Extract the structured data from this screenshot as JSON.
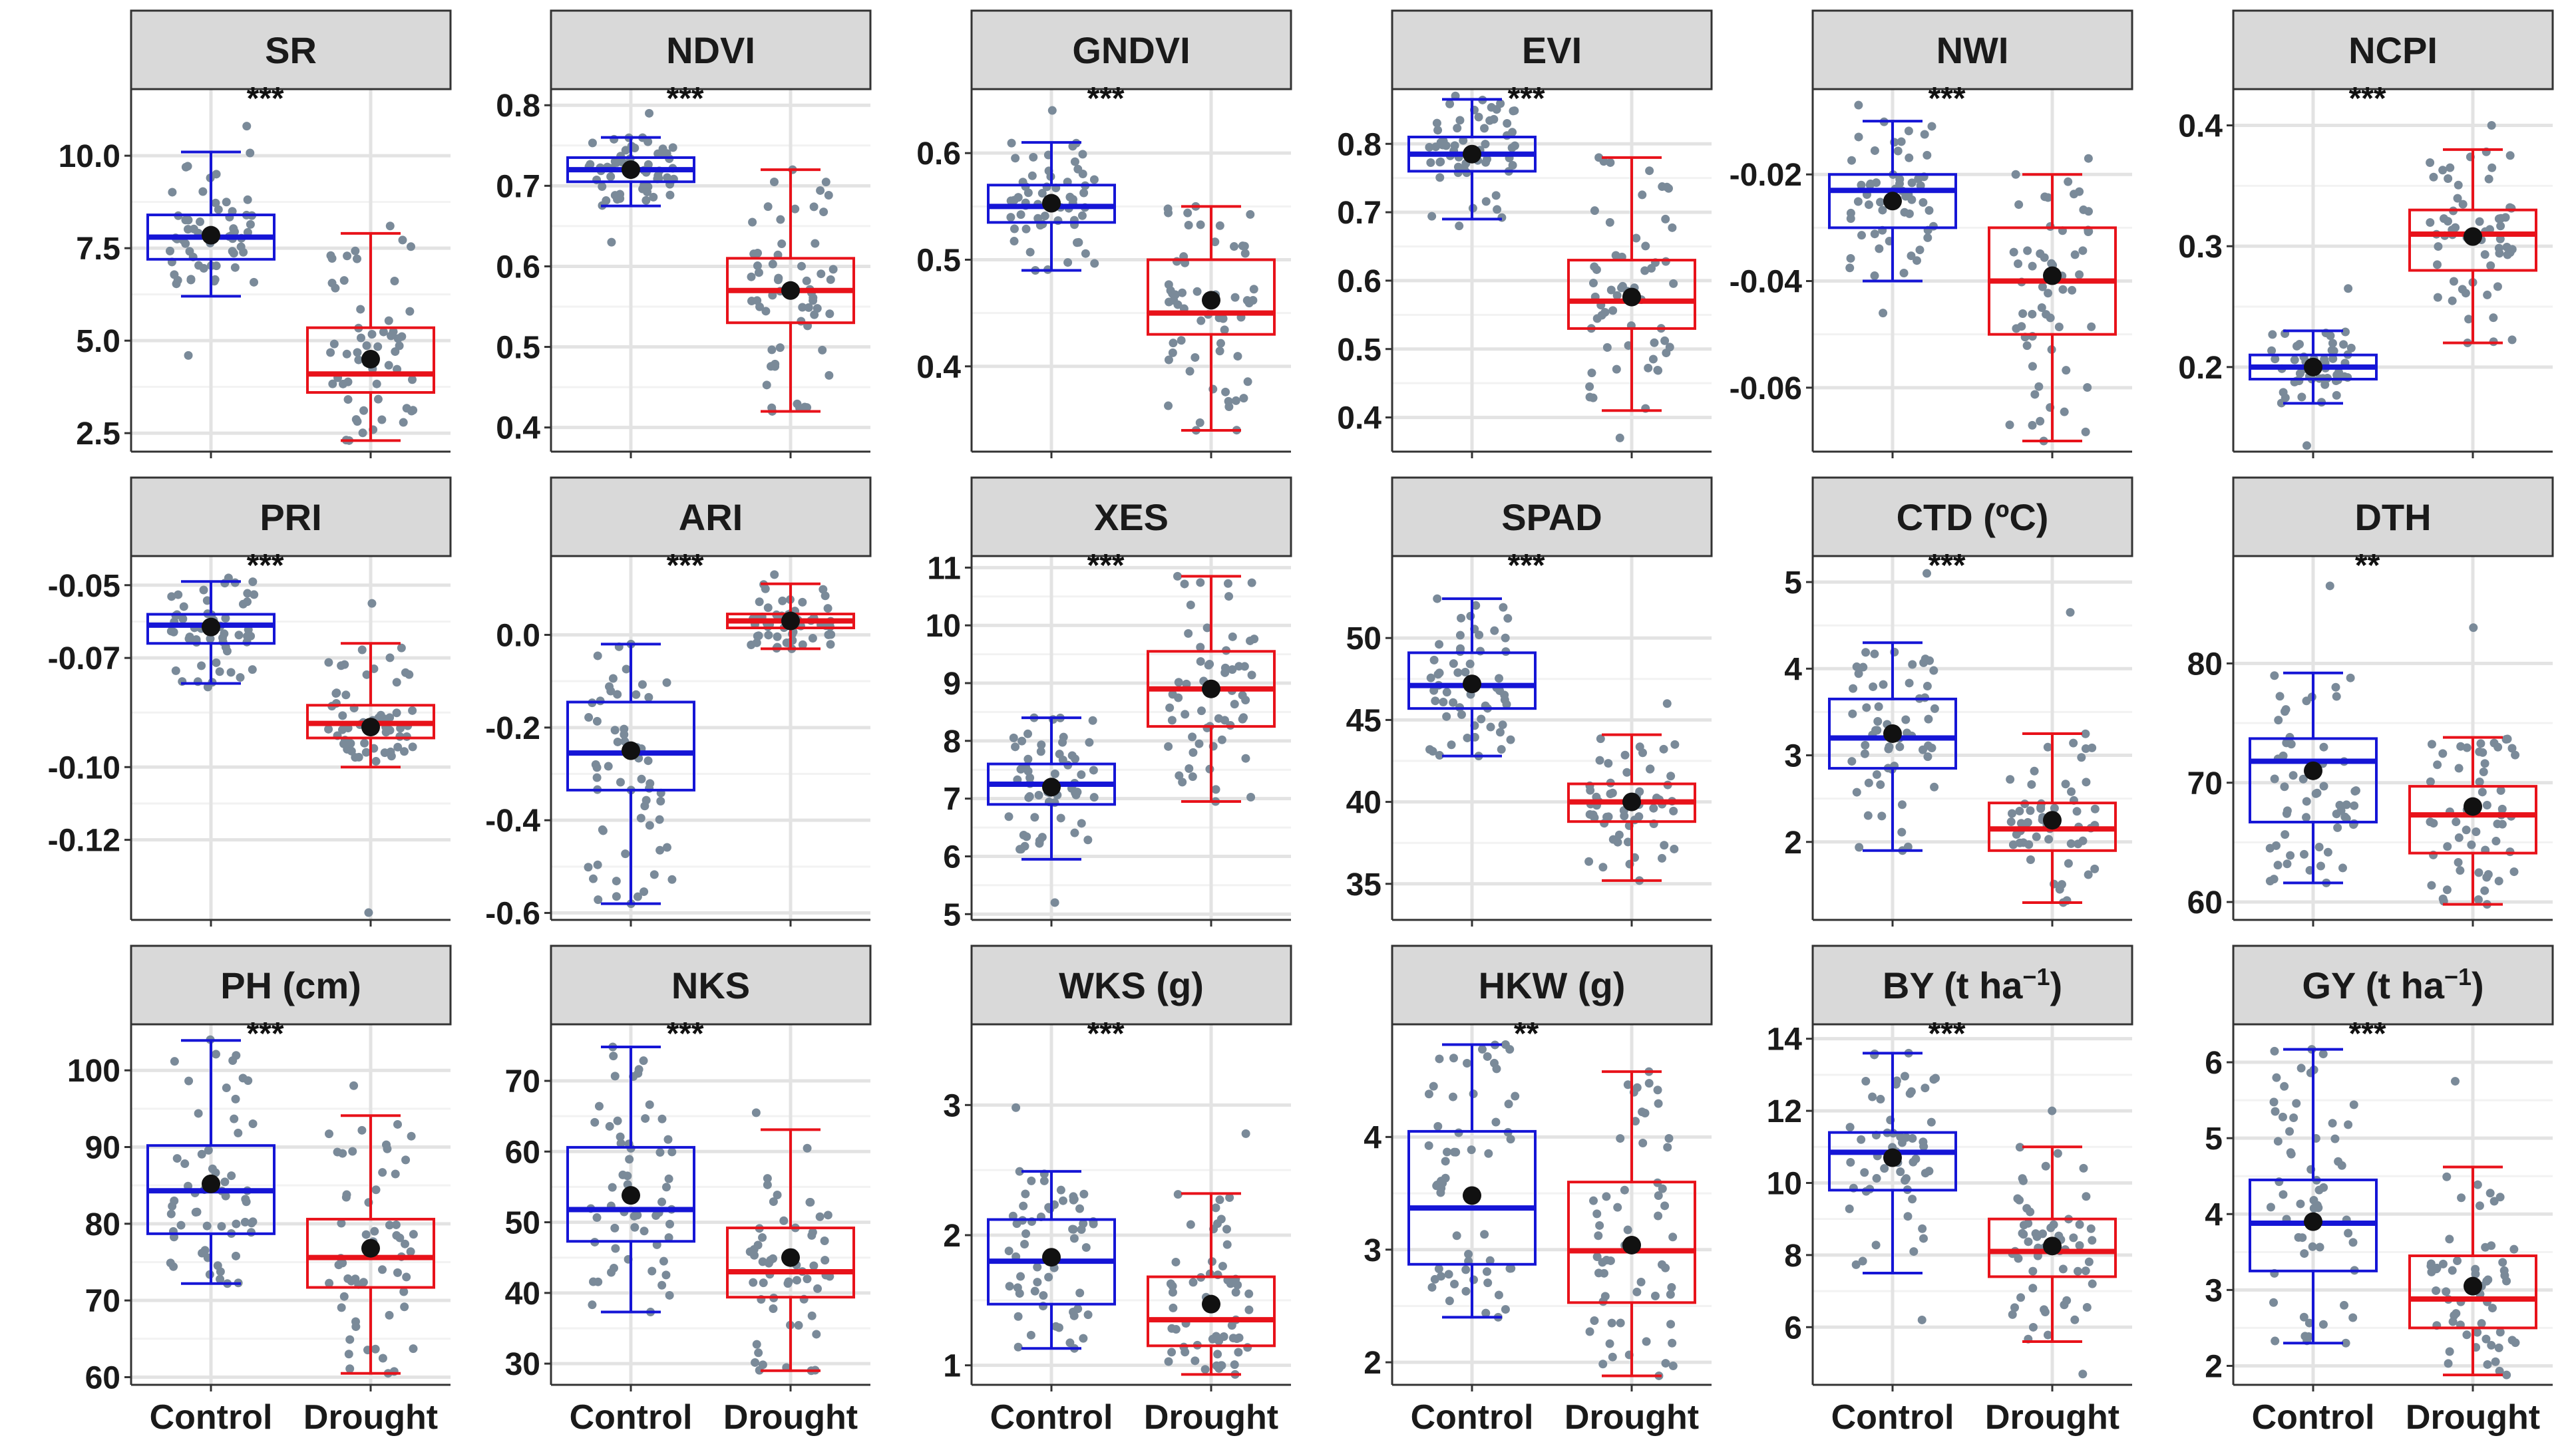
{
  "colors": {
    "control": "#1515d6",
    "drought": "#e8121a",
    "point": "#7a8a99",
    "mean": "#111111",
    "strip_fill": "#d9d9d9",
    "grid_major": "#e3e3e3",
    "grid_minor": "#f2f2f2"
  },
  "chart_data": [
    {
      "type": "box",
      "title": "SR",
      "title_sup": "",
      "significance": "***",
      "categories": [
        "Control",
        "Drought"
      ],
      "ylim": [
        2.0,
        11.8
      ],
      "ticks": [
        2.5,
        5.0,
        7.5,
        10.0
      ],
      "tick_labels": [
        "2.5",
        "5.0",
        "7.5",
        "10.0"
      ],
      "series": [
        {
          "name": "Control",
          "min": 6.2,
          "q1": 7.2,
          "median": 7.8,
          "q3": 8.4,
          "max": 10.1,
          "mean": 7.85,
          "range": [
            4.6,
            10.8
          ]
        },
        {
          "name": "Drought",
          "min": 2.3,
          "q1": 3.6,
          "median": 4.1,
          "q3": 5.35,
          "max": 7.9,
          "mean": 4.5,
          "range": [
            2.3,
            8.1
          ]
        }
      ]
    },
    {
      "type": "box",
      "title": "NDVI",
      "title_sup": "",
      "significance": "***",
      "categories": [
        "Control",
        "Drought"
      ],
      "ylim": [
        0.37,
        0.82
      ],
      "ticks": [
        0.4,
        0.5,
        0.6,
        0.7,
        0.8
      ],
      "tick_labels": [
        "0.4",
        "0.5",
        "0.6",
        "0.7",
        "0.8"
      ],
      "series": [
        {
          "name": "Control",
          "min": 0.675,
          "q1": 0.705,
          "median": 0.72,
          "q3": 0.735,
          "max": 0.76,
          "mean": 0.72,
          "range": [
            0.63,
            0.79
          ]
        },
        {
          "name": "Drought",
          "min": 0.42,
          "q1": 0.53,
          "median": 0.57,
          "q3": 0.61,
          "max": 0.72,
          "mean": 0.57,
          "range": [
            0.42,
            0.72
          ]
        }
      ]
    },
    {
      "type": "box",
      "title": "GNDVI",
      "title_sup": "",
      "significance": "***",
      "categories": [
        "Control",
        "Drought"
      ],
      "ylim": [
        0.32,
        0.66
      ],
      "ticks": [
        0.4,
        0.5,
        0.6
      ],
      "tick_labels": [
        "0.4",
        "0.5",
        "0.6"
      ],
      "series": [
        {
          "name": "Control",
          "min": 0.49,
          "q1": 0.535,
          "median": 0.55,
          "q3": 0.57,
          "max": 0.61,
          "mean": 0.553,
          "range": [
            0.49,
            0.64
          ]
        },
        {
          "name": "Drought",
          "min": 0.34,
          "q1": 0.43,
          "median": 0.45,
          "q3": 0.5,
          "max": 0.55,
          "mean": 0.462,
          "range": [
            0.34,
            0.55
          ]
        }
      ]
    },
    {
      "type": "box",
      "title": "EVI",
      "title_sup": "",
      "significance": "***",
      "categories": [
        "Control",
        "Drought"
      ],
      "ylim": [
        0.35,
        0.88
      ],
      "ticks": [
        0.4,
        0.5,
        0.6,
        0.7,
        0.8
      ],
      "tick_labels": [
        "0.4",
        "0.5",
        "0.6",
        "0.7",
        "0.8"
      ],
      "series": [
        {
          "name": "Control",
          "min": 0.69,
          "q1": 0.76,
          "median": 0.785,
          "q3": 0.81,
          "max": 0.865,
          "mean": 0.785,
          "range": [
            0.68,
            0.87
          ]
        },
        {
          "name": "Drought",
          "min": 0.41,
          "q1": 0.53,
          "median": 0.57,
          "q3": 0.63,
          "max": 0.78,
          "mean": 0.576,
          "range": [
            0.37,
            0.78
          ]
        }
      ]
    },
    {
      "type": "box",
      "title": "NWI",
      "title_sup": "",
      "significance": "***",
      "categories": [
        "Control",
        "Drought"
      ],
      "ylim": [
        -0.072,
        -0.004
      ],
      "ticks": [
        -0.06,
        -0.04,
        -0.02
      ],
      "tick_labels": [
        "-0.06",
        "-0.04",
        "-0.02"
      ],
      "series": [
        {
          "name": "Control",
          "min": -0.04,
          "q1": -0.03,
          "median": -0.023,
          "q3": -0.02,
          "max": -0.01,
          "mean": -0.025,
          "range": [
            -0.046,
            -0.007
          ]
        },
        {
          "name": "Drought",
          "min": -0.07,
          "q1": -0.05,
          "median": -0.04,
          "q3": -0.03,
          "max": -0.02,
          "mean": -0.039,
          "range": [
            -0.07,
            -0.017
          ]
        }
      ]
    },
    {
      "type": "box",
      "title": "NCPI",
      "title_sup": "",
      "significance": "***",
      "categories": [
        "Control",
        "Drought"
      ],
      "ylim": [
        0.13,
        0.43
      ],
      "ticks": [
        0.2,
        0.3,
        0.4
      ],
      "tick_labels": [
        "0.2",
        "0.3",
        "0.4"
      ],
      "series": [
        {
          "name": "Control",
          "min": 0.17,
          "q1": 0.19,
          "median": 0.2,
          "q3": 0.21,
          "max": 0.23,
          "mean": 0.2,
          "range": [
            0.135,
            0.265
          ]
        },
        {
          "name": "Drought",
          "min": 0.22,
          "q1": 0.28,
          "median": 0.31,
          "q3": 0.33,
          "max": 0.38,
          "mean": 0.308,
          "range": [
            0.22,
            0.4
          ]
        }
      ]
    },
    {
      "type": "box",
      "title": "PRI",
      "title_sup": "",
      "significance": "***",
      "categories": [
        "Control",
        "Drought"
      ],
      "ylim": [
        -0.142,
        -0.042
      ],
      "ticks": [
        -0.12,
        -0.1,
        -0.07,
        -0.05
      ],
      "tick_labels": [
        "-0.12",
        "-0.10",
        "-0.07",
        "-0.05"
      ],
      "series": [
        {
          "name": "Control",
          "min": -0.077,
          "q1": -0.066,
          "median": -0.061,
          "q3": -0.058,
          "max": -0.049,
          "mean": -0.0615,
          "range": [
            -0.078,
            -0.048
          ]
        },
        {
          "name": "Drought",
          "min": -0.1,
          "q1": -0.092,
          "median": -0.088,
          "q3": -0.083,
          "max": -0.066,
          "mean": -0.089,
          "range": [
            -0.14,
            -0.055
          ]
        }
      ]
    },
    {
      "type": "box",
      "title": "ARI",
      "title_sup": "",
      "significance": "***",
      "categories": [
        "Control",
        "Drought"
      ],
      "ylim": [
        -0.615,
        0.17
      ],
      "ticks": [
        -0.6,
        -0.4,
        -0.2,
        0.0
      ],
      "tick_labels": [
        "-0.6",
        "-0.4",
        "-0.2",
        "0.0"
      ],
      "series": [
        {
          "name": "Control",
          "min": -0.58,
          "q1": -0.335,
          "median": -0.255,
          "q3": -0.145,
          "max": -0.02,
          "mean": -0.25,
          "range": [
            -0.58,
            -0.02
          ]
        },
        {
          "name": "Drought",
          "min": -0.03,
          "q1": 0.015,
          "median": 0.03,
          "q3": 0.045,
          "max": 0.11,
          "mean": 0.03,
          "range": [
            -0.03,
            0.13
          ]
        }
      ]
    },
    {
      "type": "box",
      "title": "XES",
      "title_sup": "",
      "significance": "***",
      "categories": [
        "Control",
        "Drought"
      ],
      "ylim": [
        4.9,
        11.2
      ],
      "ticks": [
        5,
        6,
        7,
        8,
        9,
        10,
        11
      ],
      "tick_labels": [
        "5",
        "6",
        "7",
        "8",
        "9",
        "10",
        "11"
      ],
      "series": [
        {
          "name": "Control",
          "min": 5.95,
          "q1": 6.9,
          "median": 7.25,
          "q3": 7.6,
          "max": 8.4,
          "mean": 7.2,
          "range": [
            5.2,
            8.4
          ]
        },
        {
          "name": "Drought",
          "min": 6.95,
          "q1": 8.25,
          "median": 8.9,
          "q3": 9.55,
          "max": 10.85,
          "mean": 8.9,
          "range": [
            6.95,
            10.85
          ]
        }
      ]
    },
    {
      "type": "box",
      "title": "SPAD",
      "title_sup": "",
      "significance": "***",
      "categories": [
        "Control",
        "Drought"
      ],
      "ylim": [
        32.8,
        55.0
      ],
      "ticks": [
        35,
        40,
        45,
        50
      ],
      "tick_labels": [
        "35",
        "40",
        "45",
        "50"
      ],
      "series": [
        {
          "name": "Control",
          "min": 42.8,
          "q1": 45.7,
          "median": 47.1,
          "q3": 49.1,
          "max": 52.4,
          "mean": 47.2,
          "range": [
            42.8,
            52.4
          ]
        },
        {
          "name": "Drought",
          "min": 35.2,
          "q1": 38.8,
          "median": 40.0,
          "q3": 41.1,
          "max": 44.1,
          "mean": 40.0,
          "range": [
            35.2,
            46.0
          ]
        }
      ]
    },
    {
      "type": "box",
      "title": "CTD (ºC)",
      "title_sup": "",
      "significance": "***",
      "categories": [
        "Control",
        "Drought"
      ],
      "ylim": [
        1.1,
        5.3
      ],
      "ticks": [
        2,
        3,
        4,
        5
      ],
      "tick_labels": [
        "2",
        "3",
        "4",
        "5"
      ],
      "series": [
        {
          "name": "Control",
          "min": 1.9,
          "q1": 2.85,
          "median": 3.2,
          "q3": 3.65,
          "max": 4.3,
          "mean": 3.25,
          "range": [
            1.9,
            5.1
          ]
        },
        {
          "name": "Drought",
          "min": 1.3,
          "q1": 1.9,
          "median": 2.15,
          "q3": 2.45,
          "max": 3.25,
          "mean": 2.25,
          "range": [
            1.3,
            4.65
          ]
        }
      ]
    },
    {
      "type": "box",
      "title": "DTH",
      "title_sup": "",
      "significance": "**",
      "categories": [
        "Control",
        "Drought"
      ],
      "ylim": [
        58.5,
        89.0
      ],
      "ticks": [
        60,
        70,
        80
      ],
      "tick_labels": [
        "60",
        "70",
        "80"
      ],
      "series": [
        {
          "name": "Control",
          "min": 61.6,
          "q1": 66.7,
          "median": 71.8,
          "q3": 73.7,
          "max": 79.2,
          "mean": 71.0,
          "range": [
            61.6,
            86.5
          ]
        },
        {
          "name": "Drought",
          "min": 59.8,
          "q1": 64.1,
          "median": 67.3,
          "q3": 69.7,
          "max": 73.8,
          "mean": 68.0,
          "range": [
            59.8,
            83.0
          ]
        }
      ]
    },
    {
      "type": "box",
      "title": "PH (cm)",
      "title_sup": "",
      "significance": "***",
      "categories": [
        "Control",
        "Drought"
      ],
      "ylim": [
        59.0,
        106.0
      ],
      "ticks": [
        60,
        70,
        80,
        90,
        100
      ],
      "tick_labels": [
        "60",
        "70",
        "80",
        "90",
        "100"
      ],
      "series": [
        {
          "name": "Control",
          "min": 72.2,
          "q1": 78.7,
          "median": 84.3,
          "q3": 90.2,
          "max": 103.9,
          "mean": 85.2,
          "range": [
            72.2,
            104.0
          ]
        },
        {
          "name": "Drought",
          "min": 60.5,
          "q1": 71.7,
          "median": 75.6,
          "q3": 80.6,
          "max": 94.1,
          "mean": 76.8,
          "range": [
            60.5,
            98.0
          ]
        }
      ]
    },
    {
      "type": "box",
      "title": "NKS",
      "title_sup": "",
      "significance": "***",
      "categories": [
        "Control",
        "Drought"
      ],
      "ylim": [
        27.0,
        78.0
      ],
      "ticks": [
        30,
        40,
        50,
        60,
        70
      ],
      "tick_labels": [
        "30",
        "40",
        "50",
        "60",
        "70"
      ],
      "series": [
        {
          "name": "Control",
          "min": 37.3,
          "q1": 47.3,
          "median": 51.8,
          "q3": 60.6,
          "max": 74.8,
          "mean": 53.8,
          "range": [
            37.3,
            74.8
          ]
        },
        {
          "name": "Drought",
          "min": 29.0,
          "q1": 39.4,
          "median": 43.0,
          "q3": 49.2,
          "max": 63.1,
          "mean": 45.0,
          "range": [
            29.0,
            65.5
          ]
        }
      ]
    },
    {
      "type": "box",
      "title": "WKS (g)",
      "title_sup": "",
      "significance": "***",
      "categories": [
        "Control",
        "Drought"
      ],
      "ylim": [
        0.85,
        3.62
      ],
      "ticks": [
        1,
        2,
        3
      ],
      "tick_labels": [
        "1",
        "2",
        "3"
      ],
      "series": [
        {
          "name": "Control",
          "min": 1.13,
          "q1": 1.47,
          "median": 1.8,
          "q3": 2.12,
          "max": 2.49,
          "mean": 1.83,
          "range": [
            1.13,
            2.98
          ]
        },
        {
          "name": "Drought",
          "min": 0.93,
          "q1": 1.15,
          "median": 1.35,
          "q3": 1.68,
          "max": 2.32,
          "mean": 1.47,
          "range": [
            0.93,
            2.78
          ]
        }
      ]
    },
    {
      "type": "box",
      "title": "HKW (g)",
      "title_sup": "",
      "significance": "**",
      "categories": [
        "Control",
        "Drought"
      ],
      "ylim": [
        1.8,
        5.0
      ],
      "ticks": [
        2,
        3,
        4
      ],
      "tick_labels": [
        "2",
        "3",
        "4"
      ],
      "series": [
        {
          "name": "Control",
          "min": 2.4,
          "q1": 2.87,
          "median": 3.37,
          "q3": 4.05,
          "max": 4.82,
          "mean": 3.48,
          "range": [
            2.4,
            4.82
          ]
        },
        {
          "name": "Drought",
          "min": 1.88,
          "q1": 2.53,
          "median": 2.99,
          "q3": 3.6,
          "max": 4.58,
          "mean": 3.04,
          "range": [
            1.88,
            4.58
          ]
        }
      ]
    },
    {
      "type": "box",
      "title": "BY (t ha",
      "title_sup": "−1",
      "title_suffix": ")",
      "significance": "***",
      "categories": [
        "Control",
        "Drought"
      ],
      "ylim": [
        4.4,
        14.4
      ],
      "ticks": [
        6,
        8,
        10,
        12,
        14
      ],
      "tick_labels": [
        "6",
        "8",
        "10",
        "12",
        "14"
      ],
      "series": [
        {
          "name": "Control",
          "min": 7.5,
          "q1": 9.8,
          "median": 10.85,
          "q3": 11.4,
          "max": 13.6,
          "mean": 10.7,
          "range": [
            6.2,
            13.6
          ]
        },
        {
          "name": "Drought",
          "min": 5.6,
          "q1": 7.4,
          "median": 8.1,
          "q3": 9.0,
          "max": 11.0,
          "mean": 8.25,
          "range": [
            4.7,
            12.0
          ]
        }
      ]
    },
    {
      "type": "box",
      "title": "GY (t ha",
      "title_sup": "−1",
      "title_suffix": ")",
      "significance": "***",
      "categories": [
        "Control",
        "Drought"
      ],
      "ylim": [
        1.75,
        6.5
      ],
      "ticks": [
        2,
        3,
        4,
        5,
        6
      ],
      "tick_labels": [
        "2",
        "3",
        "4",
        "5",
        "6"
      ],
      "series": [
        {
          "name": "Control",
          "min": 2.3,
          "q1": 3.25,
          "median": 3.88,
          "q3": 4.45,
          "max": 6.17,
          "mean": 3.9,
          "range": [
            2.3,
            6.17
          ]
        },
        {
          "name": "Drought",
          "min": 1.88,
          "q1": 2.5,
          "median": 2.88,
          "q3": 3.45,
          "max": 4.62,
          "mean": 3.05,
          "range": [
            1.88,
            5.75
          ]
        }
      ]
    }
  ]
}
